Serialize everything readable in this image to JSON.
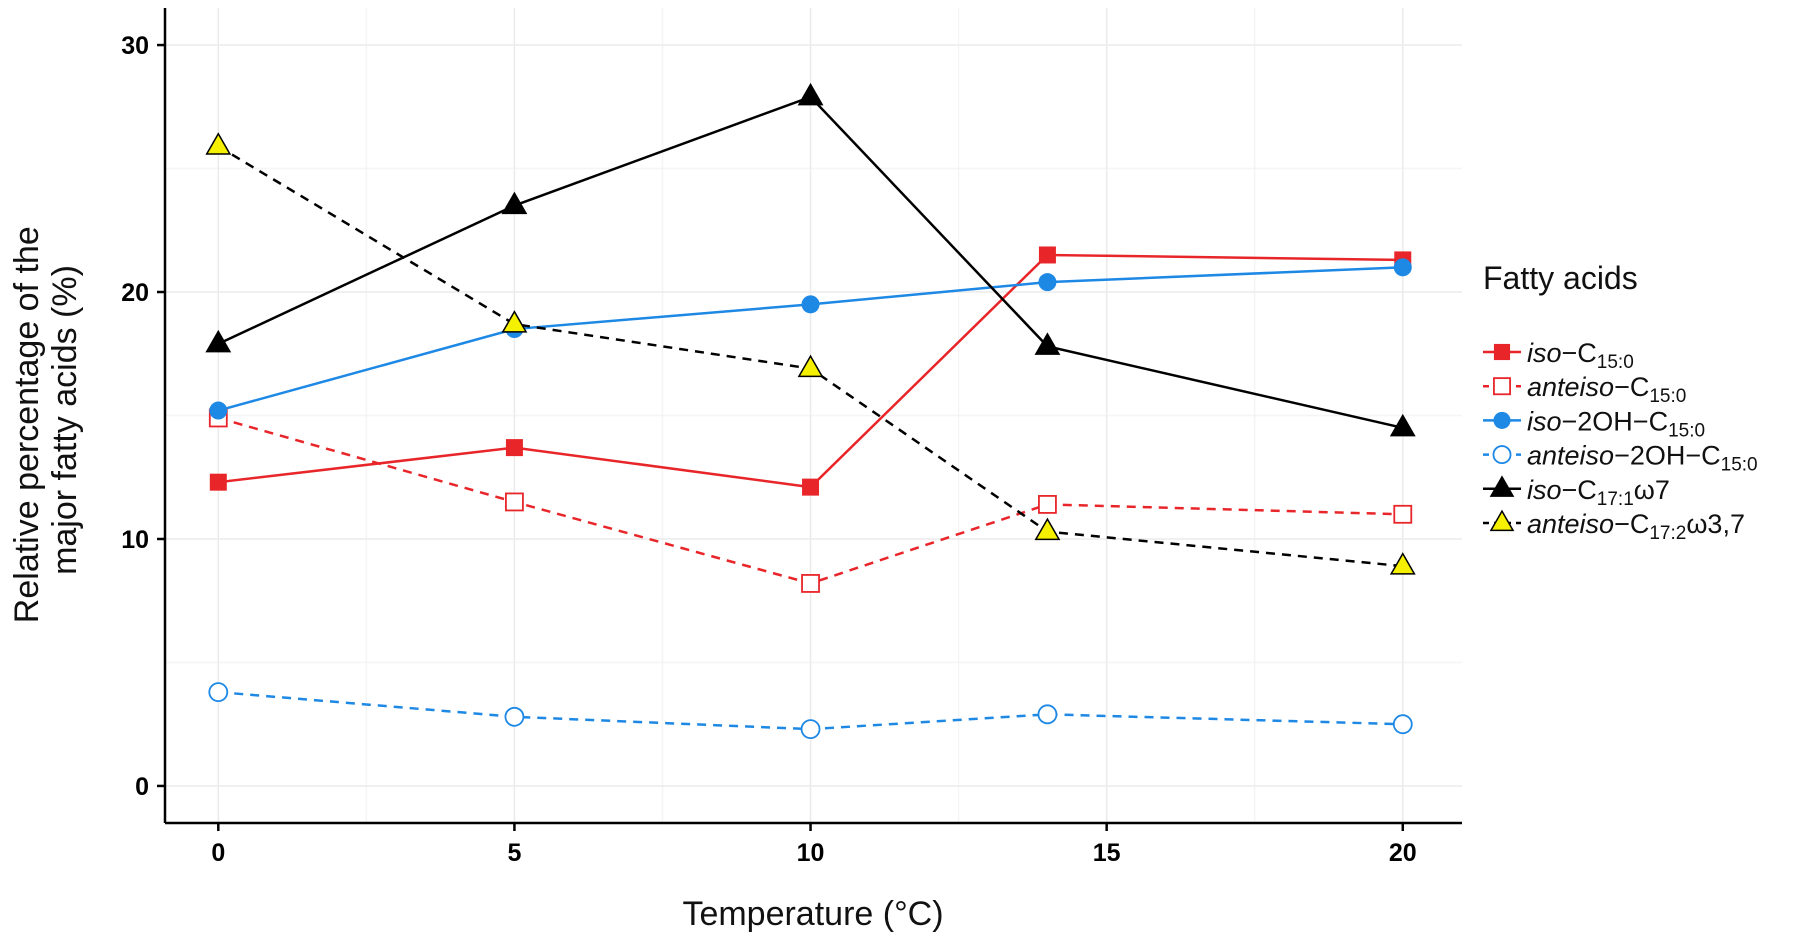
{
  "chart_data": {
    "type": "line",
    "xlabel": "Temperature (°C)",
    "ylabel": [
      "Relative percentage of the",
      "major fatty acids (%)"
    ],
    "x": [
      0,
      5,
      10,
      14,
      20
    ],
    "xticks": [
      0,
      5,
      10,
      15,
      20
    ],
    "yticks": [
      0,
      10,
      20,
      30
    ],
    "xlim": [
      -0.9,
      21
    ],
    "ylim": [
      -1.5,
      31.5
    ],
    "grid": true,
    "legend_title": "Fatty acids",
    "legend_position": "right",
    "series": [
      {
        "name": "iso-C15:0",
        "prefix": "iso",
        "base": "−C",
        "sub": "15:0",
        "suffix": "",
        "color": "#e8262a",
        "marker": "square",
        "filled": true,
        "dash": "solid",
        "values": [
          12.3,
          13.7,
          12.1,
          21.5,
          21.3
        ]
      },
      {
        "name": "anteiso-C15:0",
        "prefix": "anteiso",
        "base": "−C",
        "sub": "15:0",
        "suffix": "",
        "color": "#e8262a",
        "marker": "square",
        "filled": false,
        "dash": "dashed",
        "values": [
          14.9,
          11.5,
          8.2,
          11.4,
          11.0
        ]
      },
      {
        "name": "iso-2OH-C15:0",
        "prefix": "iso",
        "base": "−2OH−C",
        "sub": "15:0",
        "suffix": "",
        "color": "#1e88e5",
        "marker": "circle",
        "filled": true,
        "dash": "solid",
        "values": [
          15.2,
          18.5,
          19.5,
          20.4,
          21.0
        ]
      },
      {
        "name": "anteiso-2OH-C15:0",
        "prefix": "anteiso",
        "base": "−2OH−C",
        "sub": "15:0",
        "suffix": "",
        "color": "#1e88e5",
        "marker": "circle",
        "filled": false,
        "dash": "dashed",
        "values": [
          3.8,
          2.8,
          2.3,
          2.9,
          2.5
        ]
      },
      {
        "name": "iso-C17:1ω7",
        "prefix": "iso",
        "base": "−C",
        "sub": "17:1",
        "suffix": "ω7",
        "color": "#000000",
        "marker": "triangle",
        "fill": "#000000",
        "dash": "solid",
        "values": [
          17.9,
          23.5,
          27.9,
          17.8,
          14.5
        ]
      },
      {
        "name": "anteiso-C17:2ω3,7",
        "prefix": "anteiso",
        "base": "−C",
        "sub": "17:2",
        "suffix": "ω3,7",
        "color": "#000000",
        "marker": "triangle",
        "fill": "#f4f000",
        "dash": "dashed",
        "values": [
          25.9,
          18.7,
          16.9,
          10.3,
          8.9
        ]
      }
    ]
  }
}
